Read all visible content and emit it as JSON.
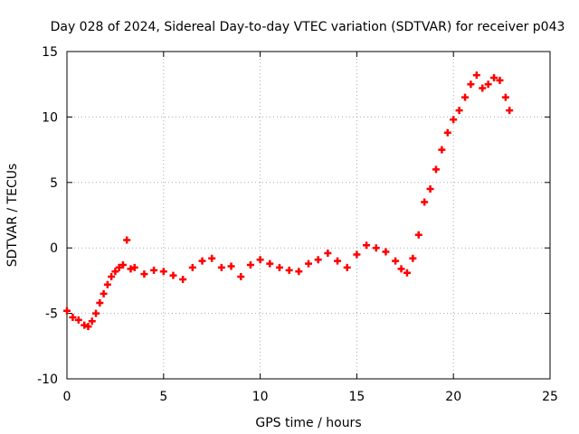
{
  "chart_data": {
    "type": "scatter",
    "title": "Day 028 of 2024, Sidereal Day-to-day VTEC variation (SDTVAR) for receiver p043",
    "xlabel": "GPS time / hours",
    "ylabel": "SDTVAR / TECUs",
    "xlim": [
      0,
      25
    ],
    "ylim": [
      -10,
      15
    ],
    "xticks": [
      0,
      5,
      10,
      15,
      20,
      25
    ],
    "yticks": [
      -10,
      -5,
      0,
      5,
      10,
      15
    ],
    "grid": true,
    "marker": "+",
    "color": "#ff0000",
    "series": [
      {
        "name": "SDTVAR",
        "x": [
          0.0,
          0.3,
          0.6,
          0.9,
          1.1,
          1.3,
          1.5,
          1.7,
          1.9,
          2.1,
          2.3,
          2.5,
          2.7,
          2.9,
          3.1,
          3.3,
          3.5,
          4.0,
          4.5,
          5.0,
          5.5,
          6.0,
          6.5,
          7.0,
          7.5,
          8.0,
          8.5,
          9.0,
          9.5,
          10.0,
          10.5,
          11.0,
          11.5,
          12.0,
          12.5,
          13.0,
          13.5,
          14.0,
          14.5,
          15.0,
          15.5,
          16.0,
          16.5,
          17.0,
          17.3,
          17.6,
          17.9,
          18.2,
          18.5,
          18.8,
          19.1,
          19.4,
          19.7,
          20.0,
          20.3,
          20.6,
          20.9,
          21.2,
          21.5,
          21.8,
          22.1,
          22.4,
          22.7,
          22.9
        ],
        "y": [
          -4.8,
          -5.3,
          -5.5,
          -5.9,
          -6.0,
          -5.6,
          -5.0,
          -4.2,
          -3.5,
          -2.8,
          -2.2,
          -1.8,
          -1.5,
          -1.3,
          0.6,
          -1.6,
          -1.5,
          -2.0,
          -1.7,
          -1.8,
          -2.1,
          -2.4,
          -1.5,
          -1.0,
          -0.8,
          -1.5,
          -1.4,
          -2.2,
          -1.3,
          -0.9,
          -1.2,
          -1.5,
          -1.7,
          -1.8,
          -1.2,
          -0.9,
          -0.4,
          -1.0,
          -1.5,
          -0.5,
          0.2,
          0.0,
          -0.3,
          -1.0,
          -1.6,
          -1.9,
          -0.8,
          1.0,
          3.5,
          4.5,
          6.0,
          7.5,
          8.8,
          9.8,
          10.5,
          11.5,
          12.5,
          13.2,
          12.2,
          12.5,
          13.0,
          12.8,
          11.5,
          10.5
        ]
      }
    ]
  }
}
